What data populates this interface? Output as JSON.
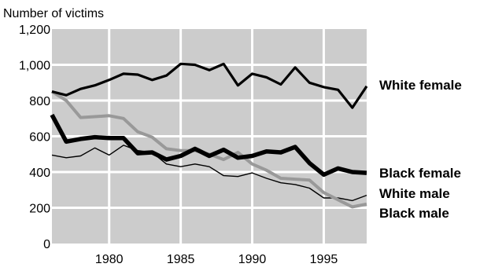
{
  "chart_data": {
    "type": "line",
    "title": "",
    "xlabel": "",
    "ylabel": "Number of victims",
    "xlim": [
      1976,
      1998
    ],
    "ylim": [
      0,
      1200
    ],
    "x_ticks": [
      1980,
      1985,
      1990,
      1995
    ],
    "x_tick_labels": [
      "1980",
      "1985",
      "1990",
      "1995"
    ],
    "y_ticks": [
      0,
      200,
      400,
      600,
      800,
      1000,
      1200
    ],
    "y_tick_labels": [
      "0",
      "200",
      "400",
      "600",
      "800",
      "1,000",
      "1,200"
    ],
    "grid": true,
    "legend": "direct labels at right end of lines",
    "x": [
      1976,
      1977,
      1978,
      1979,
      1980,
      1981,
      1982,
      1983,
      1984,
      1985,
      1986,
      1987,
      1988,
      1989,
      1990,
      1991,
      1992,
      1993,
      1994,
      1995,
      1996,
      1997,
      1998
    ],
    "series": [
      {
        "name": "White female",
        "color": "#000000",
        "values": [
          850,
          830,
          865,
          885,
          915,
          950,
          945,
          915,
          940,
          1005,
          1000,
          970,
          1005,
          885,
          950,
          930,
          890,
          985,
          900,
          875,
          860,
          760,
          880
        ]
      },
      {
        "name": "Black female",
        "color": "#000000",
        "values": [
          720,
          570,
          585,
          595,
          590,
          590,
          505,
          510,
          470,
          490,
          530,
          490,
          525,
          480,
          490,
          515,
          510,
          540,
          450,
          385,
          420,
          400,
          395
        ]
      },
      {
        "name": "White male",
        "color": "#000000",
        "values": [
          495,
          480,
          490,
          535,
          495,
          550,
          520,
          510,
          445,
          430,
          445,
          430,
          380,
          375,
          395,
          365,
          340,
          330,
          310,
          255,
          255,
          240,
          270
        ]
      },
      {
        "name": "Black male",
        "color": "#999999",
        "values": [
          850,
          800,
          705,
          710,
          715,
          700,
          625,
          595,
          530,
          520,
          520,
          500,
          470,
          510,
          445,
          410,
          365,
          360,
          355,
          285,
          245,
          205,
          220
        ]
      }
    ]
  }
}
